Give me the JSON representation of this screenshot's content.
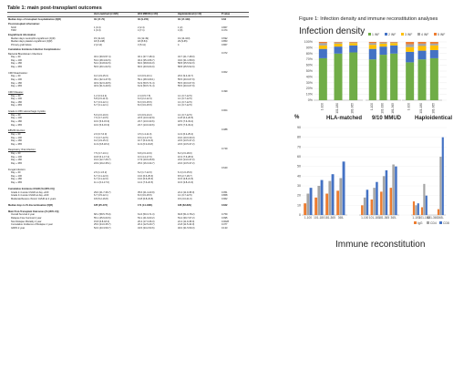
{
  "table": {
    "title": "Table 1: main post-transplant outcomes",
    "headers": [
      "",
      "HLA-matched (n=226)",
      "9/10 MMUD (n=84)",
      "Haploidentical (n=44)",
      "P value"
    ],
    "rows": [
      {
        "t": "sec",
        "c": [
          "Median days of transplant hospitalization (IQR)",
          "30 (17-70)",
          "30 (9-155)",
          "30 (17-169)",
          "0.62"
        ]
      },
      {
        "t": "sec",
        "c": [
          "Post-transplant information:",
          "",
          "",
          "",
          ""
        ]
      },
      {
        "t": "item",
        "c": [
          "NCR",
          "1 (0.4)",
          "2 (2.4)",
          "1 (2)",
          "0.867"
        ]
      },
      {
        "t": "item",
        "c": [
          "TRM",
          "1 (0.4)",
          "4 (7.1)",
          "4 (9)",
          "0.474"
        ]
      },
      {
        "t": "sec",
        "c": [
          "Engraftment information",
          "",
          "",
          "",
          ""
        ]
      },
      {
        "t": "item",
        "c": [
          "Median days neutrophil engraftment (IQR)",
          "15 (11-42)",
          "19 (12-49)",
          "19 (14-103)",
          "0.692"
        ]
      },
      {
        "t": "item",
        "c": [
          "Median days platelet engraftment (IQR)",
          "18 (6-138)",
          "18 (8-54)",
          "29 (9-65)",
          "0.853"
        ]
      },
      {
        "t": "item",
        "c": [
          "Primary graft failure",
          "2 (2.14)",
          "3 (5.11)",
          "4",
          "0.867"
        ]
      },
      {
        "t": "sec",
        "c": [
          "Cumulative Incidence Infection Complications:",
          "",
          "",
          "",
          ""
        ]
      },
      {
        "t": "sub",
        "c": [
          "Bacterial Bloodstream Infections:",
          "",
          "",
          "",
          "0.372"
        ]
      },
      {
        "t": "item",
        "c": [
          "Day + 30",
          "46.2 (39.9-57.4)",
          "46.1 (37.7-48.4)",
          "34.7 (21.7-48.0)",
          ""
        ]
      },
      {
        "t": "item",
        "c": [
          "Day + 100",
          "53.2 (48.4-62.6)",
          "46.4 (35.4-56.7)",
          "43.0 (31.1-58.9)",
          ""
        ]
      },
      {
        "t": "item",
        "c": [
          "Day + 180",
          "54.2 (44.8-62.6)",
          "60.0 (38.8-64.0)",
          "58.8 (25.5-52.0)",
          ""
        ]
      },
      {
        "t": "item",
        "c": [
          "Day + 365",
          "56.6 (49.1-62.6)",
          "60.0 (40.9-64.0)",
          "58.8 (25.5-52.0)",
          ""
        ]
      },
      {
        "t": "gap",
        "c": [
          "",
          "",
          "",
          "",
          ""
        ]
      },
      {
        "t": "sub",
        "c": [
          "CMV Reactivation:",
          "",
          "",
          "",
          "0.002"
        ]
      },
      {
        "t": "item",
        "c": [
          "Day + 30",
          "9.2 (4.9-15.3)",
          "4.0 (0.9-10.1)",
          "20.0 (9.4-32.7)",
          ""
        ]
      },
      {
        "t": "item",
        "c": [
          "Day + 100",
          "39.1 (32.4-47.8)",
          "59.1 (48.3-69.1)",
          "55.5 (40.0-67.9)",
          ""
        ]
      },
      {
        "t": "item",
        "c": [
          "Day + 180",
          "40.9 (32.0-49.5)",
          "61.9 (50.5-71.4)",
          "55.5 (40.0-67.9)",
          ""
        ]
      },
      {
        "t": "item",
        "c": [
          "Day + 365",
          "40.9 (31.6-49.6)",
          "61.9 (50.5-71.4)",
          "55.5 (40.0-67.9)",
          ""
        ]
      },
      {
        "t": "gap",
        "c": [
          "",
          "",
          "",
          "",
          ""
        ]
      },
      {
        "t": "sub",
        "c": [
          "CMV Disease:",
          "",
          "",
          "",
          "0.499"
        ]
      },
      {
        "t": "item",
        "c": [
          "Day + 30",
          "1.2 (0.3-3.4)",
          "2.4 (0.5-7.5)",
          "4.1 (0.7-12.5)",
          ""
        ]
      },
      {
        "t": "item",
        "c": [
          "Day + 100",
          "5.8 (2.6-11.0)",
          "6.0 (2.2-12.4)",
          "4.1 (0.7-12.5)",
          ""
        ]
      },
      {
        "t": "item",
        "c": [
          "Day + 180",
          "6.7 (3.3-12.1)",
          "8.3 (3.6-15.5)",
          "4.1 (0.7-12.5)",
          ""
        ]
      },
      {
        "t": "item",
        "c": [
          "Day + 365",
          "6.7 (3.1-12.1)",
          "8.3 (3.6-15.5)",
          "4.1 (0.7-12.5)",
          ""
        ]
      },
      {
        "t": "gap",
        "c": [
          "",
          "",
          "",
          "",
          ""
        ]
      },
      {
        "t": "sub",
        "c": [
          "Grade 2-4 BK Hemorrhagic Cystitis:",
          "",
          "",
          "",
          "0.004"
        ]
      },
      {
        "t": "item",
        "c": [
          "Day + 30",
          "5.0 (2.0-10.0)",
          "4.6 (0.9-13.2)",
          "4.1 (0.7-12.5)",
          ""
        ]
      },
      {
        "t": "item",
        "c": [
          "Day + 100",
          "7.6 (3.7-13.5)",
          "22.5 (13.0-32.9)",
          "14.8 (6.4-26.5)",
          ""
        ]
      },
      {
        "t": "item",
        "c": [
          "Day + 180",
          "10.0 (5.6-15.9)",
          "23.7 (13.0-33.6)",
          "18.5 (7.6-33.4)",
          ""
        ]
      },
      {
        "t": "item",
        "c": [
          "Day + 365",
          "10.0 (5.6-15.9)",
          "23.7 (13.0-33.6)",
          "18.5 (7.6-33.4)",
          ""
        ]
      },
      {
        "t": "gap",
        "c": [
          "",
          "",
          "",
          "",
          ""
        ]
      },
      {
        "t": "sub",
        "c": [
          "EBV/B Infection:",
          "",
          "",
          "",
          "0.088"
        ]
      },
      {
        "t": "item",
        "c": [
          "Day + 30",
          "2.0 (0.7-6.0)",
          "4.5 (1.4-11.0)",
          "14.3 (6.2-25.4)",
          ""
        ]
      },
      {
        "t": "item",
        "c": [
          "Day + 100",
          "7.3 (3.7-12.5)",
          "9.9 (4.4-17.9)",
          "19.0 (10.0-30.3)",
          ""
        ]
      },
      {
        "t": "item",
        "c": [
          "Day + 180",
          "9.2 (4.9-15.3)",
          "10.7 (5.0-19.3)",
          "24.5 (13.5-37.2)",
          ""
        ]
      },
      {
        "t": "item",
        "c": [
          "Day + 365",
          "11.9 (6.8-18.4)",
          "11.9 (6.3-19.8)",
          "24.5 (13.5-37.2)",
          ""
        ]
      },
      {
        "t": "gap",
        "c": [
          "",
          "",
          "",
          "",
          ""
        ]
      },
      {
        "t": "sub",
        "c": [
          "Respiratory Viral Infection:",
          "",
          "",
          "",
          "0.749"
        ]
      },
      {
        "t": "item",
        "c": [
          "Day + 30",
          "7.5 (3.7-13.1)",
          "6.8 (2.6-13.9)",
          "8.2 (2.6-18.0)",
          ""
        ]
      },
      {
        "t": "item",
        "c": [
          "Day + 100",
          "16.8 (6.1-17.2)",
          "9.3 (4.4-17.0)",
          "16.3 (7.6-28.0)",
          ""
        ]
      },
      {
        "t": "item",
        "c": [
          "Day + 180",
          "19.3 (12.7-26.7)",
          "17.9 (10.6-26.8)",
          "24.6 (14.0-37.2)",
          ""
        ]
      },
      {
        "t": "item",
        "c": [
          "Day + 365",
          "24.9 (19.2-35.1)",
          "25.0 (16.3-34.7)",
          "24.6 (13.5-37.2)",
          ""
        ]
      },
      {
        "t": "gap",
        "c": [
          "",
          "",
          "",
          "",
          ""
        ]
      },
      {
        "t": "sub",
        "c": [
          "Fungal Infection:",
          "",
          "",
          "",
          "0.640"
        ]
      },
      {
        "t": "item",
        "c": [
          "Day + 30",
          "2.6 (1.1-5.2)",
          "5.2 (1.7-12.0)",
          "6.4 (1.6-15.9)",
          ""
        ]
      },
      {
        "t": "item",
        "c": [
          "Day + 100",
          "6.7 (3.1-12.0)",
          "13.0 (6.6-25.6)",
          "8.5 (2.7-18.7)",
          ""
        ]
      },
      {
        "t": "item",
        "c": [
          "Day + 180",
          "6.7 (3.1-12.0)",
          "13.0 (6.6-25.6)",
          "10.6 (3.8-21.6)",
          ""
        ]
      },
      {
        "t": "item",
        "c": [
          "Day + 365",
          "11.1 (6.2-17.6)",
          "14.2 (7.6-22.5)",
          "10.6 (3.8-21.6)",
          ""
        ]
      },
      {
        "t": "gap",
        "c": [
          "",
          "",
          "",
          "",
          ""
        ]
      },
      {
        "t": "sec",
        "c": [
          "Cumulative Incidence GVHD [% (95% CI)]",
          "",
          "",
          "",
          ""
        ]
      },
      {
        "t": "item",
        "c": [
          "Grade 2-4 acute GVHD at day +100",
          "29.0 (21.7-36.7)",
          "35.6 (21.4-43.9)",
          "22.4 (11.9-35.0)",
          "0.051"
        ]
      },
      {
        "t": "item",
        "c": [
          "Grade 3-4 acute GVHD at day +100",
          "6.7 (3.5-12.1)",
          "8.3 (3.6-15.5)",
          "4.1 (0.7-12.5)",
          "0.868"
        ]
      },
      {
        "t": "item",
        "c": [
          "Moderate/Severe chronic GVHD at 2 years",
          "9.8 (5.2-16.8)",
          "13.8 (6.8-23.8)",
          "9.6 (3.0-21.0)",
          "0.962"
        ]
      },
      {
        "t": "gap",
        "c": [
          "",
          "",
          "",
          "",
          ""
        ]
      },
      {
        "t": "sec",
        "c": [
          "Median days to IS discontinuation (IQR)",
          "185 (25-473)",
          "171 (14-1081)",
          "186 (62-829)",
          "0.842"
        ]
      },
      {
        "t": "gap",
        "c": [
          "",
          "",
          "",
          "",
          ""
        ]
      },
      {
        "t": "sec",
        "c": [
          "Main Post-Transplant Outcomes [% (95% CI)]",
          "",
          "",
          "",
          ""
        ]
      },
      {
        "t": "item",
        "c": [
          "Overall Survival 2 year",
          "68.1 (58.5-75.9)",
          "61.6 (50.3-71.3)",
          "66.8 (51.0-78.2)",
          "0.759"
        ]
      },
      {
        "t": "item",
        "c": [
          "Relapse Free Survival 2 year",
          "55.1 (45.6-63.6)",
          "53.1 (41.9-63.2)",
          "53.4 (39.7-67.2)",
          "0.995"
        ]
      },
      {
        "t": "item",
        "c": [
          "Non Relapse Mortality 2 year",
          "15.8 (6.8-18.4)",
          "26.4 (17.3-36.3)",
          "22.4 (11.9-35.0)",
          "0.0028"
        ]
      },
      {
        "t": "item",
        "c": [
          "Cumulative Incidence of Relapse 1 year",
          "25.0 (24.0-35.7)",
          "20.4 (12.5-29.7)",
          "21.8 (11.5-34.0)",
          "0.377"
        ]
      },
      {
        "t": "item",
        "c": [
          "GRFS 2 year",
          "52.0 (43.3-59.7)",
          "43.5 (33.2-53.6)",
          "46.0 (31.5-59.3)",
          "0.133"
        ]
      }
    ]
  },
  "figure": {
    "title": "Figure 1: Infection density and immune reconstitution analyses",
    "infection_title": "Infection density",
    "immune_title": "Immune reconstitution",
    "panel_labels": [
      "HLA-matched",
      "9/10 MMUD",
      "Haploidentical"
    ],
    "y_unit": "%"
  },
  "chart_data": [
    {
      "type": "bar",
      "stacked": true,
      "title": "Infection density",
      "y_ticks": [
        "100%",
        "90%",
        "80%",
        "70%",
        "60%",
        "50%",
        "40%",
        "30%",
        "20%",
        "10%",
        "0%"
      ],
      "legend": [
        "1 INF",
        "2 INF",
        "3 INF",
        "4 INF",
        "5 INF"
      ],
      "legend_colors": [
        "#70ad47",
        "#4472c4",
        "#ffc000",
        "#a5a5a5",
        "#ed7d31"
      ],
      "panels": [
        {
          "name": "HLA-matched",
          "categories": [
            "1-100",
            "101-180",
            "181-365"
          ],
          "series": [
            [
              72,
              80,
              82
            ],
            [
              16,
              12,
              12
            ],
            [
              6,
              5,
              4
            ],
            [
              4,
              2,
              1
            ],
            [
              2,
              1,
              1
            ]
          ]
        },
        {
          "name": "9/10 MMUD",
          "categories": [
            "1-100",
            "101-180",
            "181-365"
          ],
          "series": [
            [
              70,
              78,
              80
            ],
            [
              18,
              14,
              14
            ],
            [
              7,
              5,
              4
            ],
            [
              3,
              2,
              1
            ],
            [
              2,
              1,
              1
            ]
          ]
        },
        {
          "name": "Haploidentical",
          "categories": [
            "1-100",
            "101-180",
            "181-365"
          ],
          "series": [
            [
              65,
              70,
              72
            ],
            [
              18,
              15,
              14
            ],
            [
              8,
              8,
              8
            ],
            [
              5,
              4,
              3
            ],
            [
              4,
              3,
              3
            ]
          ]
        }
      ]
    },
    {
      "type": "bar",
      "title": "Immune reconstitution",
      "ylabel": "%",
      "y_ticks": [
        "90",
        "80",
        "70",
        "60",
        "50",
        "40",
        "30",
        "20",
        "10",
        "0"
      ],
      "ylim": [
        0,
        90
      ],
      "legend": [
        "IgG",
        "CD4",
        "CD8"
      ],
      "legend_colors": [
        "#ed7d31",
        "#a5a5a5",
        "#4472c4"
      ],
      "panels": [
        {
          "name": "HLA-matched",
          "categories": [
            "1-100",
            "101-180",
            "181-365",
            "365-"
          ],
          "series": [
            [
              12,
              18,
              22,
              25
            ],
            [
              22,
              30,
              35,
              38
            ],
            [
              28,
              36,
              42,
              55
            ]
          ]
        },
        {
          "name": "9/10 MMUD",
          "categories": [
            "1-100",
            "101-180",
            "181-365",
            "365-"
          ],
          "series": [
            [
              10,
              16,
              24,
              28
            ],
            [
              18,
              28,
              40,
              52
            ],
            [
              26,
              34,
              46,
              50
            ]
          ]
        },
        {
          "name": "Haploidentical",
          "categories": [
            "1-100",
            "101-180",
            "181-365",
            "365-"
          ],
          "series": [
            [
              14,
              8,
              0,
              6
            ],
            [
              10,
              32,
              0,
              60
            ],
            [
              12,
              20,
              0,
              80
            ]
          ]
        }
      ]
    }
  ]
}
